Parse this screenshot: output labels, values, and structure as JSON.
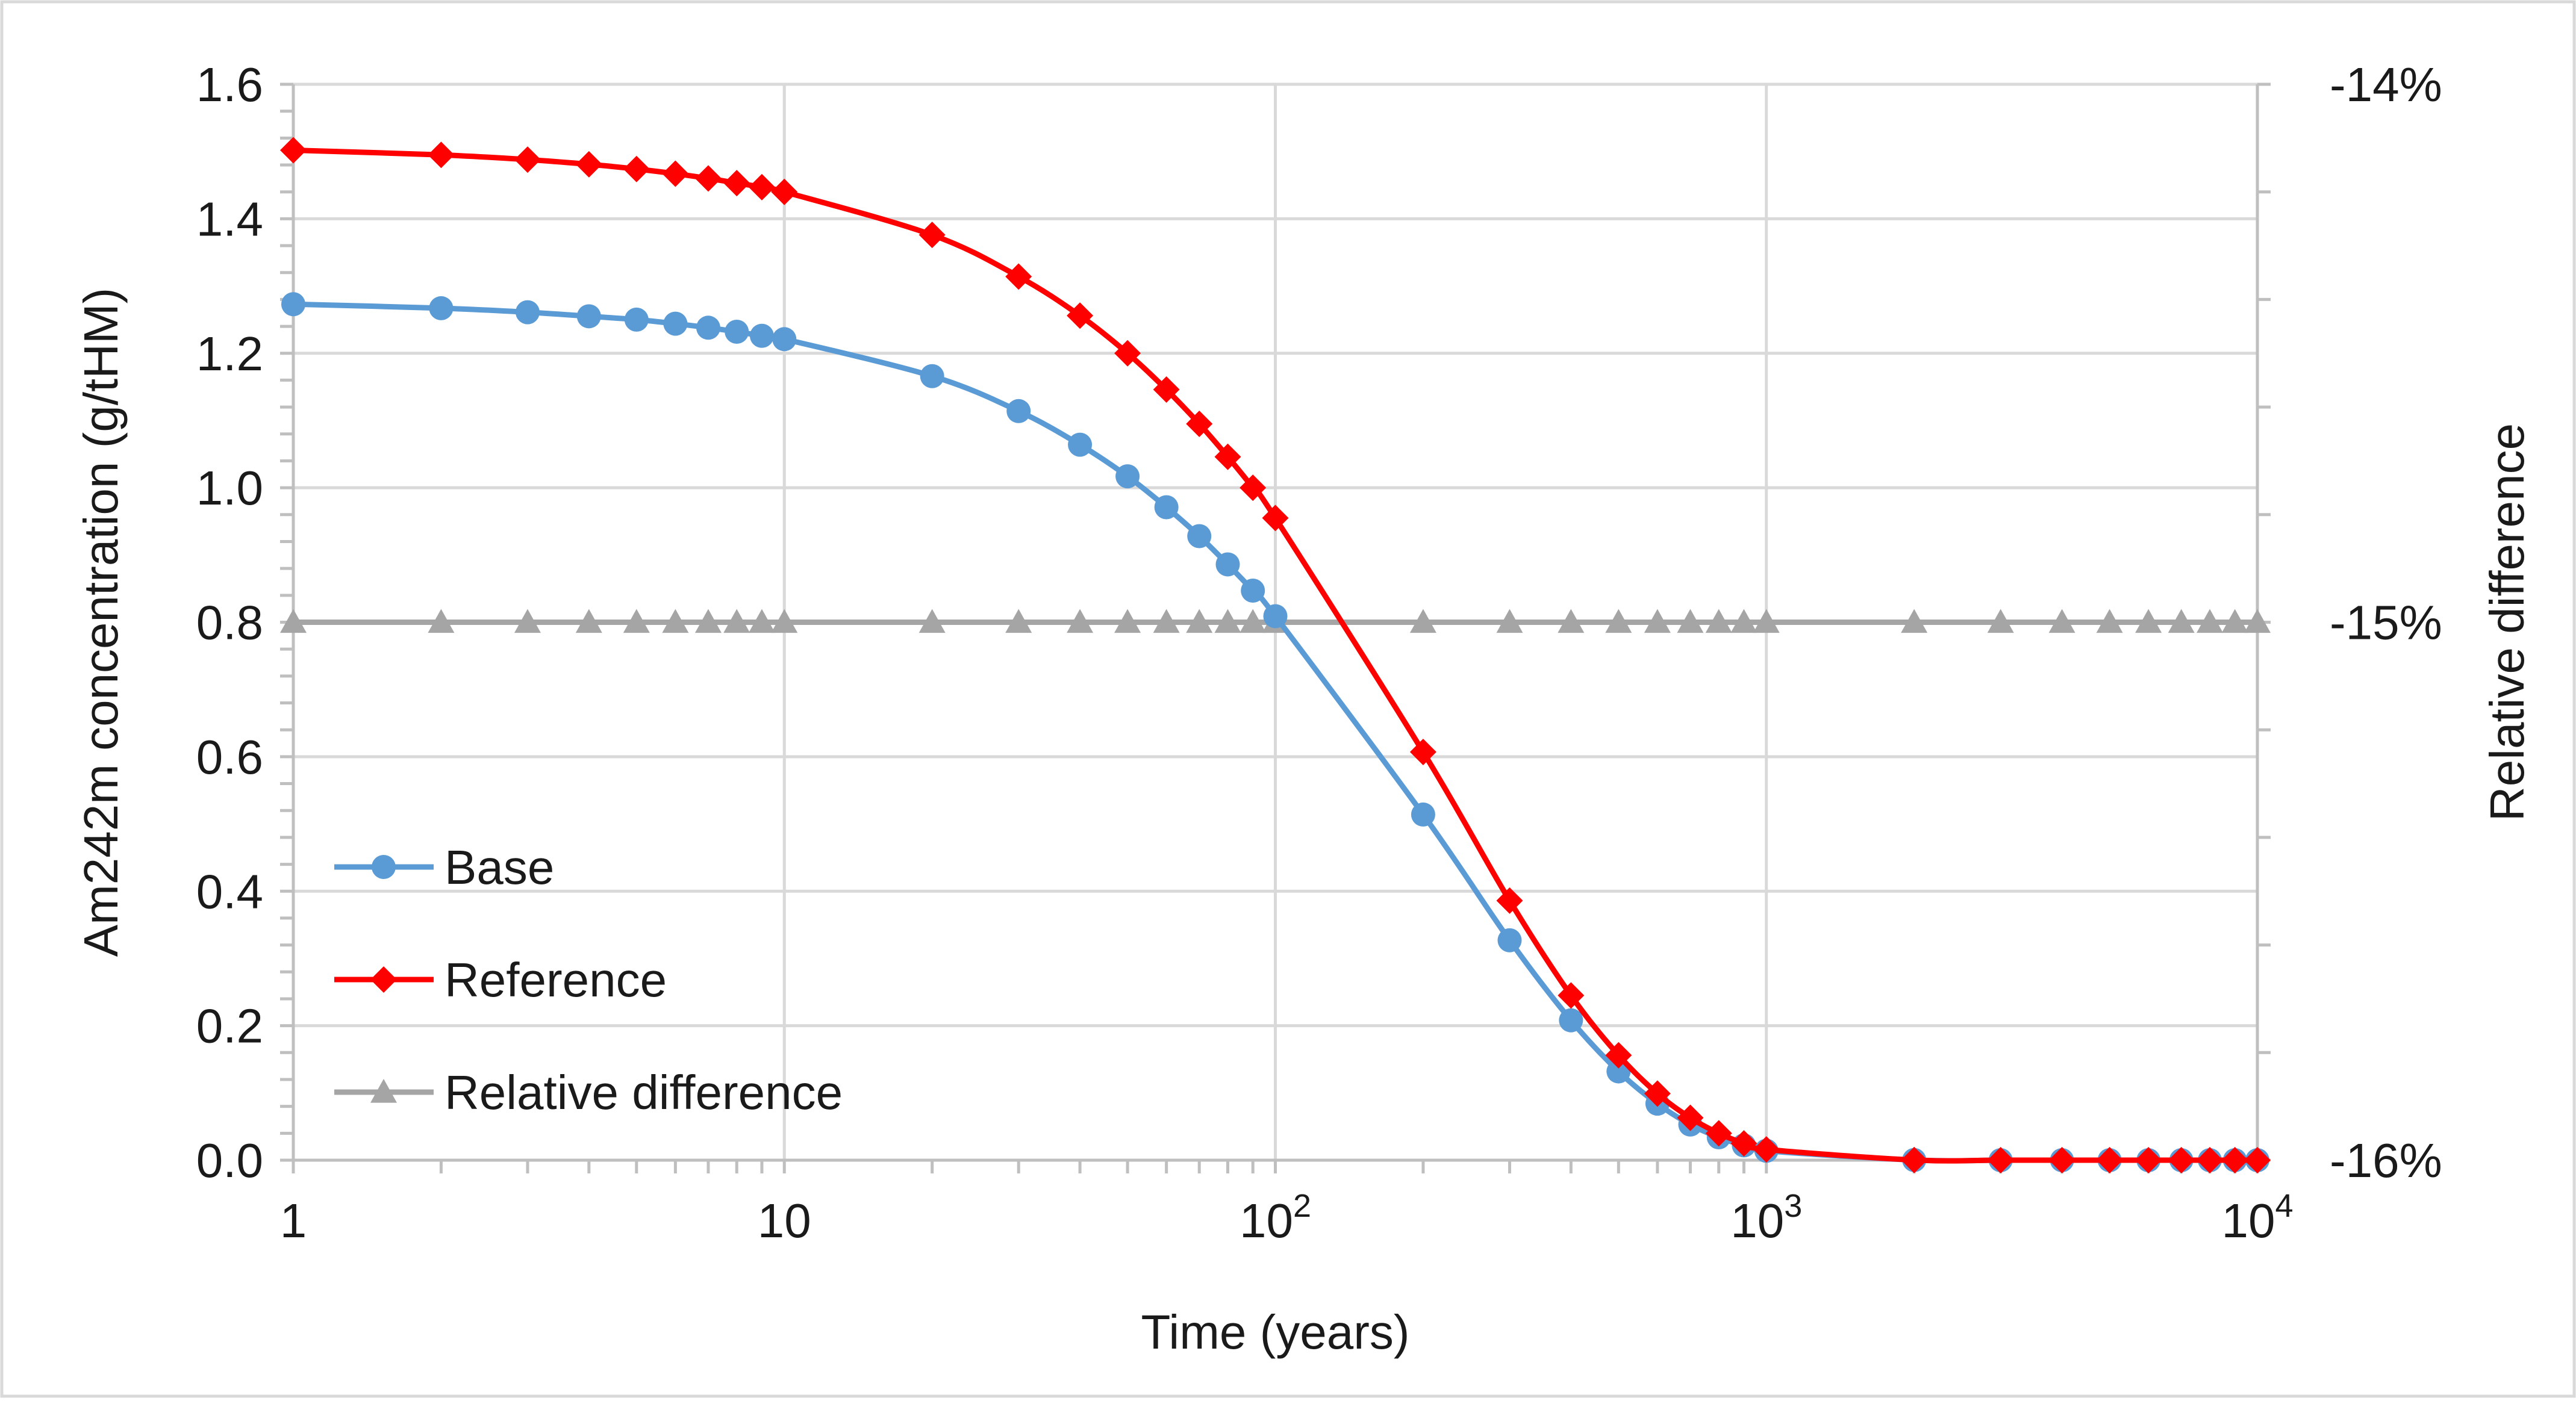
{
  "chart_data": {
    "type": "line",
    "title": "",
    "xlabel": "Time (years)",
    "ylabel": "Am242m concentration  (g/tHM)",
    "y2label": "Relative difference",
    "xscale": "log",
    "xlim": [
      1,
      10000
    ],
    "ylim": [
      0,
      1.6
    ],
    "y2lim": [
      -0.16,
      -0.14
    ],
    "grid": true,
    "legend_position": "bottom-left",
    "x_ticks": [
      {
        "value": 1,
        "base": "1",
        "exp": ""
      },
      {
        "value": 10,
        "base": "10",
        "exp": ""
      },
      {
        "value": 100,
        "base": "10",
        "exp": "2"
      },
      {
        "value": 1000,
        "base": "10",
        "exp": "3"
      },
      {
        "value": 10000,
        "base": "10",
        "exp": "4"
      }
    ],
    "y_ticks": [
      {
        "value": 0.0,
        "label": "0.0"
      },
      {
        "value": 0.2,
        "label": "0.2"
      },
      {
        "value": 0.4,
        "label": "0.4"
      },
      {
        "value": 0.6,
        "label": "0.6"
      },
      {
        "value": 0.8,
        "label": "0.8"
      },
      {
        "value": 1.0,
        "label": "1.0"
      },
      {
        "value": 1.2,
        "label": "1.2"
      },
      {
        "value": 1.4,
        "label": "1.4"
      },
      {
        "value": 1.6,
        "label": "1.6"
      }
    ],
    "y2_ticks": [
      {
        "value": -0.14,
        "label": "-14%"
      },
      {
        "value": -0.15,
        "label": "-15%"
      },
      {
        "value": -0.16,
        "label": "-16%"
      }
    ],
    "x": [
      1,
      2,
      3,
      4,
      5,
      6,
      7,
      8,
      9,
      10,
      20,
      30,
      40,
      50,
      60,
      70,
      80,
      90,
      100,
      200,
      300,
      400,
      500,
      600,
      700,
      800,
      900,
      1000,
      2000,
      3000,
      4000,
      5000,
      6000,
      7000,
      8000,
      9000,
      10000
    ],
    "series": [
      {
        "name": "Base",
        "axis": "left",
        "color": "#5b9bd5",
        "marker": "circle",
        "values": [
          1.273,
          1.267,
          1.261,
          1.255,
          1.25,
          1.244,
          1.238,
          1.232,
          1.226,
          1.221,
          1.166,
          1.114,
          1.064,
          1.017,
          0.971,
          0.928,
          0.886,
          0.847,
          0.809,
          0.514,
          0.327,
          0.208,
          0.132,
          0.084,
          0.053,
          0.034,
          0.022,
          0.014,
          0.0002,
          0.0,
          0.0,
          0.0,
          0.0,
          0.0,
          0.0,
          0.0,
          0.0
        ]
      },
      {
        "name": "Reference",
        "axis": "left",
        "color": "#ff0000",
        "marker": "diamond",
        "values": [
          1.502,
          1.495,
          1.488,
          1.481,
          1.474,
          1.467,
          1.46,
          1.453,
          1.447,
          1.44,
          1.376,
          1.314,
          1.256,
          1.2,
          1.146,
          1.095,
          1.046,
          1.0,
          0.955,
          0.607,
          0.386,
          0.245,
          0.156,
          0.099,
          0.063,
          0.04,
          0.025,
          0.016,
          0.0002,
          0.0,
          0.0,
          0.0,
          0.0,
          0.0,
          0.0,
          0.0,
          0.0
        ]
      },
      {
        "name": "Relative difference",
        "axis": "right",
        "color": "#a5a5a5",
        "marker": "triangle",
        "values": [
          -0.15,
          -0.15,
          -0.15,
          -0.15,
          -0.15,
          -0.15,
          -0.15,
          -0.15,
          -0.15,
          -0.15,
          -0.15,
          -0.15,
          -0.15,
          -0.15,
          -0.15,
          -0.15,
          -0.15,
          -0.15,
          -0.15,
          -0.15,
          -0.15,
          -0.15,
          -0.15,
          -0.15,
          -0.15,
          -0.15,
          -0.15,
          -0.15,
          -0.15,
          -0.15,
          -0.15,
          -0.15,
          -0.15,
          -0.15,
          -0.15,
          -0.15,
          -0.15
        ]
      }
    ]
  }
}
